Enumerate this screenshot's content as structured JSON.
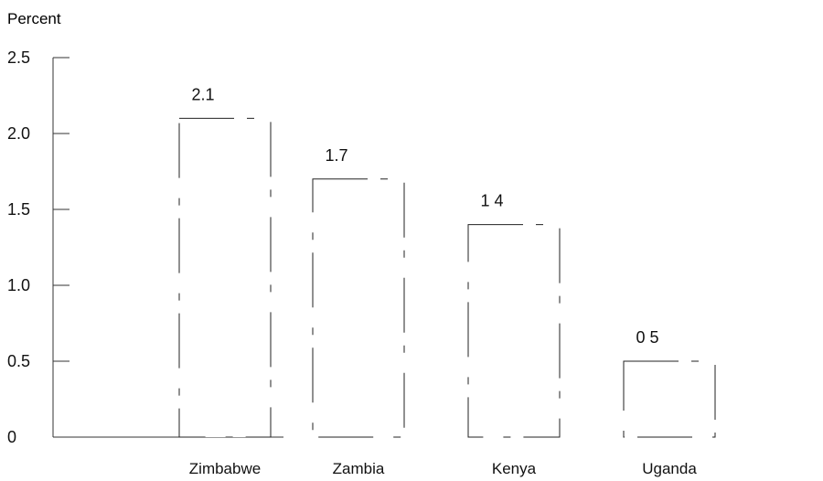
{
  "chart_data": {
    "type": "bar",
    "ylabel": "Percent",
    "categories": [
      "Zimbabwe",
      "Zambia",
      "Kenya",
      "Uganda"
    ],
    "values": [
      2.1,
      1.7,
      1.4,
      0.5
    ],
    "data_labels": [
      "2.1",
      "1.7",
      "1 4",
      "0 5"
    ],
    "ylim": [
      0,
      2.5
    ],
    "yticks": [
      0,
      0.5,
      1.0,
      1.5,
      2.0,
      2.5
    ],
    "ytick_labels": [
      "0",
      "0.5",
      "1.0",
      "1.5",
      "2.0",
      "2.5"
    ],
    "grid": false,
    "legend": "none"
  },
  "colors": {
    "text": "#111111",
    "axis": "#333333",
    "bar_edge": "#222222",
    "bar_fill": "#ffffff"
  }
}
